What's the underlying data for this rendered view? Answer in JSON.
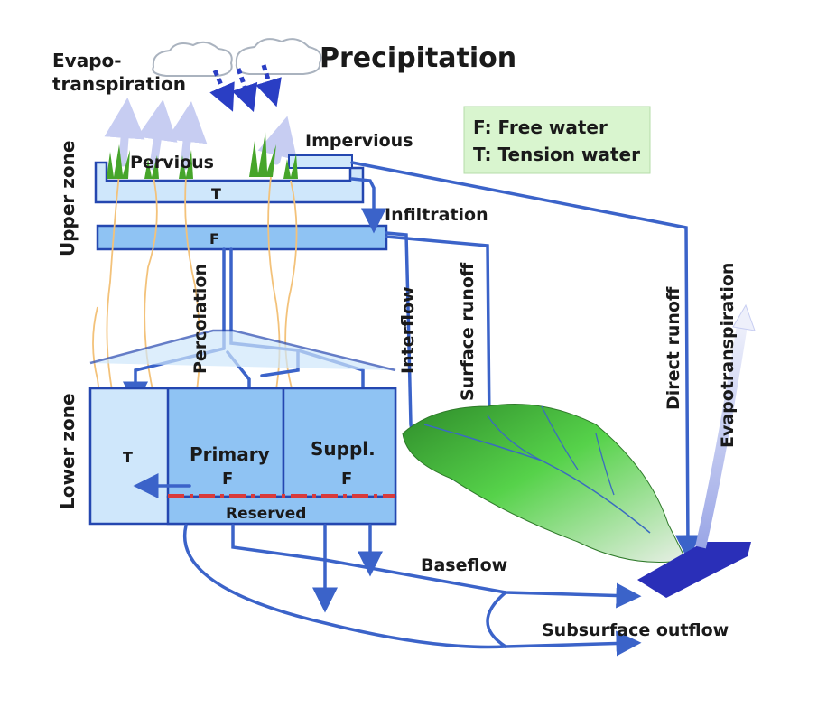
{
  "labels": {
    "evapo_line1": "Evapo-",
    "evapo_line2": "transpiration",
    "precipitation": "Precipitation",
    "impervious": "Impervious",
    "pervious": "Pervious",
    "upper_zone": "Upper zone",
    "lower_zone": "Lower zone",
    "upper_t": "T",
    "upper_f": "F",
    "infiltration": "Infiltration",
    "percolation": "Percolation",
    "interflow": "Interflow",
    "surface_runoff": "Surface runoff",
    "direct_runoff": "Direct runoff",
    "evapotranspiration_right": "Evapotranspiration",
    "lower_t": "T",
    "primary": "Primary",
    "primary_f": "F",
    "suppl": "Suppl.",
    "suppl_f": "F",
    "reserved": "Reserved",
    "baseflow": "Baseflow",
    "subsurface_outflow": "Subsurface outflow"
  },
  "legend": {
    "line1": "F: Free water",
    "line2": "T: Tension water"
  },
  "colors": {
    "pipe": "#3b63c9",
    "zone_fill": "#cfe7fb",
    "free_water_fill": "#8fc3f3",
    "legend_bg": "#d9f5cf",
    "reserved_line": "#d93a3a",
    "channel": "#2a2fb8",
    "evap_arrow": "#c7cdf2"
  }
}
